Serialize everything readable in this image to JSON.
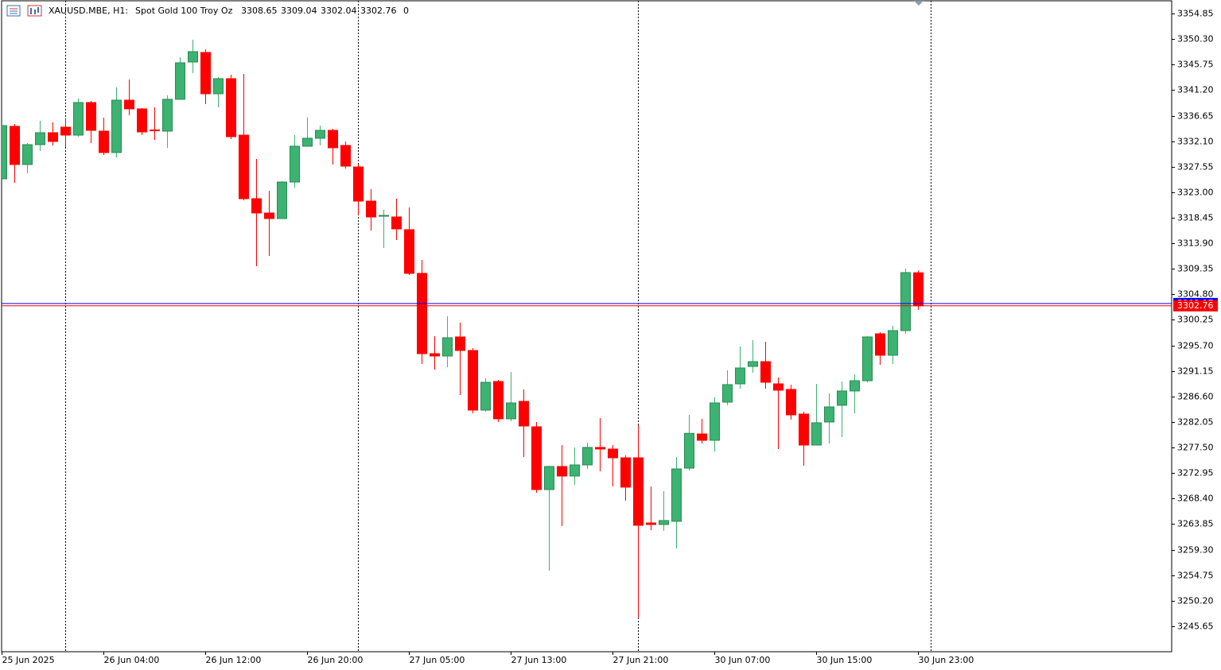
{
  "chart_data": {
    "type": "candlestick",
    "title": "XAUUSD.MBE, H1:",
    "subtitle": "Spot Gold 100 Troy Oz",
    "tick_volume": "0",
    "up_color": "#3cb371",
    "down_color": "#ff0000",
    "bid_color": "#ff0000",
    "ask_color": "#0000ff",
    "ask": 3303.17,
    "ylim": [
      3241.11,
      3357.26
    ],
    "yticks": [
      3354.85,
      {
        "value": 3350.3,
        "label": "3350.30"
      },
      3345.75,
      {
        "value": 3341.2,
        "label": "3341.20"
      },
      3336.65,
      {
        "value": 3332.1,
        "label": "3332.10"
      },
      3327.55,
      {
        "value": 3323.0,
        "label": "3323.00"
      },
      3318.45,
      {
        "value": 3313.9,
        "label": "3313.90"
      },
      3309.35,
      {
        "value": 3304.8,
        "label": "3304.80"
      },
      3300.25,
      {
        "value": 3295.7,
        "label": "3295.70"
      },
      3291.15,
      {
        "value": 3286.6,
        "label": "3286.60"
      },
      3282.05,
      {
        "value": 3277.5,
        "label": "3277.50"
      },
      3272.95,
      {
        "value": 3268.4,
        "label": "3268.40"
      },
      3263.85,
      {
        "value": 3259.3,
        "label": "3259.30"
      },
      3254.75,
      {
        "value": 3250.2,
        "label": "3250.20"
      },
      3245.65
    ],
    "categories": [
      "25 Jun 2025",
      null,
      null,
      null,
      null,
      null,
      null,
      null,
      "26 Jun 04:00",
      null,
      null,
      null,
      null,
      null,
      null,
      null,
      "26 Jun 12:00",
      null,
      null,
      null,
      null,
      null,
      null,
      null,
      "26 Jun 20:00",
      null,
      null,
      null,
      null,
      null,
      null,
      null,
      "27 Jun 05:00",
      null,
      null,
      null,
      null,
      null,
      null,
      null,
      "27 Jun 13:00",
      null,
      null,
      null,
      null,
      null,
      null,
      null,
      "27 Jun 21:00",
      null,
      null,
      null,
      null,
      null,
      null,
      null,
      "30 Jun 07:00",
      null,
      null,
      null,
      null,
      null,
      null,
      null,
      "30 Jun 15:00",
      null,
      null,
      null,
      null,
      null,
      null,
      null,
      "30 Jun 23:00"
    ],
    "open": [
      3325.39,
      3334.74,
      3327.94,
      3331.48,
      3333.61,
      3334.6,
      3333.18,
      3338.99,
      3333.89,
      3330.07,
      3339.41,
      3337.86,
      3334.1,
      3333.89,
      3339.56,
      3346.21,
      3347.91,
      3340.55,
      3343.24,
      3333.18,
      3321.85,
      3319.3,
      3318.31,
      3324.82,
      3331.2,
      3332.62,
      3334.03,
      3331.34,
      3327.51,
      3321.42,
      3318.73,
      3318.59,
      3316.33,
      3308.54,
      3294.23,
      3293.81,
      3297.21,
      3294.8,
      3284.17,
      3289.27,
      3282.62,
      3285.73,
      3281.2,
      3270.01,
      3274.12,
      3272.42,
      3274.4,
      3277.52,
      3277.23,
      3275.67,
      3275.67,
      3264.06,
      3263.78,
      3264.35,
      3273.83,
      3279.92,
      3278.79,
      3285.59,
      3288.85,
      3291.96,
      3292.81,
      3288.85,
      3287.86,
      3283.47,
      3277.94,
      3282.05,
      3285.03,
      3287.58,
      3289.41,
      3297.77,
      3293.95,
      3298.34,
      3308.65
    ],
    "high": [
      3335.3,
      3335.16,
      3331.76,
      3335.73,
      3335.45,
      3336.01,
      3339.7,
      3339.27,
      3336.3,
      3341.68,
      3343.1,
      3338.0,
      3338.14,
      3340.26,
      3347.06,
      3350.18,
      3348.48,
      3343.52,
      3343.95,
      3344.09,
      3328.93,
      3323.27,
      3324.97,
      3333.18,
      3336.3,
      3334.88,
      3334.31,
      3332.05,
      3327.94,
      3323.55,
      3319.87,
      3321.85,
      3320.29,
      3310.94,
      3297.35,
      3300.89,
      3299.75,
      3295.22,
      3289.84,
      3289.56,
      3290.97,
      3287.86,
      3282.05,
      3274.26,
      3277.94,
      3277.52,
      3278.37,
      3282.76,
      3277.94,
      3276.1,
      3281.48,
      3270.58,
      3269.73,
      3275.82,
      3283.32,
      3282.62,
      3286.44,
      3291.26,
      3295.51,
      3296.64,
      3296.36,
      3289.98,
      3288.71,
      3283.89,
      3288.85,
      3287.15,
      3289.27,
      3290.55,
      3297.35,
      3298.06,
      3299.19,
      3309.39,
      3309.04
    ],
    "low": [
      3325.25,
      3324.68,
      3326.38,
      3330.35,
      3331.34,
      3331.06,
      3332.9,
      3331.76,
      3329.64,
      3329.22,
      3336.72,
      3333.18,
      3332.33,
      3330.92,
      3339.56,
      3344.23,
      3338.7,
      3338.14,
      3332.47,
      3321.57,
      3309.81,
      3311.65,
      3318.31,
      3323.83,
      3331.2,
      3331.34,
      3327.94,
      3327.23,
      3319.02,
      3316.18,
      3313.07,
      3314.48,
      3308.25,
      3292.39,
      3291.4,
      3291.82,
      3286.87,
      3283.61,
      3283.89,
      3282.05,
      3282.19,
      3275.82,
      3269.44,
      3255.56,
      3263.5,
      3270.86,
      3273.69,
      3273.27,
      3270.58,
      3268.03,
      3247.21,
      3262.79,
      3262.65,
      3259.53,
      3273.41,
      3278.22,
      3276.81,
      3285.03,
      3288.0,
      3290.83,
      3288.0,
      3277.23,
      3282.47,
      3274.26,
      3277.94,
      3278.22,
      3279.36,
      3283.61,
      3289.13,
      3292.25,
      3292.39,
      3297.77,
      3302.04
    ],
    "close": [
      3334.88,
      3327.94,
      3331.48,
      3333.61,
      3332.05,
      3333.18,
      3338.99,
      3334.03,
      3330.07,
      3339.41,
      3337.86,
      3333.75,
      3334.03,
      3339.56,
      3346.07,
      3348.05,
      3340.55,
      3343.24,
      3332.9,
      3321.85,
      3319.3,
      3318.31,
      3324.82,
      3331.2,
      3332.62,
      3334.03,
      3330.92,
      3327.65,
      3321.42,
      3318.59,
      3318.87,
      3316.47,
      3308.54,
      3294.23,
      3293.81,
      3297.06,
      3294.8,
      3284.17,
      3289.13,
      3282.62,
      3285.45,
      3281.34,
      3270.01,
      3274.12,
      3272.42,
      3274.4,
      3277.52,
      3277.23,
      3275.67,
      3270.44,
      3263.64,
      3263.78,
      3264.49,
      3273.69,
      3280.03,
      3278.79,
      3285.45,
      3288.71,
      3291.68,
      3292.81,
      3289.13,
      3287.72,
      3283.32,
      3277.94,
      3281.91,
      3284.74,
      3287.58,
      3289.41,
      3297.21,
      3293.95,
      3298.34,
      3308.68,
      3302.76
    ]
  }
}
